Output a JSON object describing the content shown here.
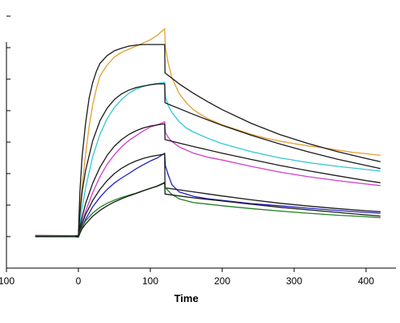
{
  "chart_data": {
    "type": "line",
    "title": "",
    "xlabel": "Time",
    "ylabel": "",
    "xlim": [
      -100,
      440
    ],
    "ylim": [
      -10,
      70
    ],
    "x_ticks": [
      -100,
      0,
      100,
      200,
      300,
      400
    ],
    "x_tick_labels": [
      "100",
      "0",
      "100",
      "200",
      "300",
      "400"
    ],
    "y_ticks": [
      -10,
      0,
      10,
      20,
      30,
      40,
      50,
      60,
      70
    ],
    "y_tick_labels": [],
    "grid": false,
    "legend": "none",
    "association_end": 120,
    "series": [
      {
        "color": "#e0a030",
        "x": [
          -60,
          -5,
          0,
          2,
          5,
          10,
          15,
          20,
          25,
          30,
          40,
          50,
          60,
          70,
          80,
          90,
          100,
          110,
          120,
          121,
          125,
          130,
          140,
          150,
          160,
          170,
          180,
          200,
          220,
          240,
          260,
          280,
          300,
          320,
          340,
          360,
          380,
          400,
          420
        ],
        "y": [
          0.2,
          0.1,
          0.2,
          8,
          16,
          26,
          35,
          42,
          47,
          51,
          54.5,
          57,
          58.5,
          59.5,
          60.5,
          61.5,
          62.5,
          64,
          66,
          60,
          55,
          50.5,
          45.5,
          42.5,
          40.3,
          38.8,
          37.5,
          35.5,
          34,
          32.5,
          31.3,
          30.3,
          29.5,
          28.8,
          28.2,
          27.5,
          26.8,
          26.3,
          25.8
        ]
      },
      {
        "color": "#1a1a1a",
        "x": [
          -60,
          -5,
          0,
          2,
          5,
          10,
          15,
          20,
          25,
          30,
          40,
          50,
          60,
          70,
          80,
          90,
          100,
          110,
          120,
          120.5,
          140,
          160,
          180,
          200,
          240,
          280,
          320,
          360,
          400,
          420
        ],
        "y": [
          0.2,
          0.2,
          0.2,
          14,
          25,
          36,
          44,
          49,
          52.5,
          55,
          57.5,
          59,
          59.8,
          60.5,
          60.8,
          61,
          61,
          61,
          61,
          52,
          48.5,
          45.5,
          42.8,
          40.3,
          36,
          32.4,
          29.5,
          27,
          24.8,
          23.8
        ]
      },
      {
        "color": "#30c8d0",
        "x": [
          -60,
          -5,
          0,
          2,
          5,
          10,
          20,
          30,
          40,
          50,
          60,
          70,
          80,
          90,
          100,
          110,
          120,
          121,
          125,
          130,
          140,
          150,
          160,
          180,
          200,
          240,
          280,
          320,
          360,
          400,
          420
        ],
        "y": [
          0.3,
          0.2,
          0.2,
          4,
          9,
          15.5,
          25.5,
          32.5,
          37.5,
          41,
          43.5,
          45.5,
          46.8,
          47.7,
          48.3,
          48.6,
          49,
          44.5,
          41.5,
          39.5,
          36.5,
          34.5,
          33.2,
          31.2,
          29.5,
          27,
          25,
          23.5,
          22.3,
          21.3,
          20.8
        ]
      },
      {
        "color": "#1a1a1a",
        "x": [
          -60,
          -5,
          0,
          2,
          5,
          10,
          20,
          30,
          40,
          50,
          60,
          70,
          80,
          90,
          100,
          110,
          120,
          120.5,
          160,
          200,
          240,
          280,
          320,
          360,
          400,
          420
        ],
        "y": [
          0.2,
          0.2,
          0.2,
          7,
          14,
          21,
          30.5,
          36.8,
          40.8,
          43.5,
          45.3,
          46.5,
          47.3,
          47.8,
          48.2,
          48.5,
          48.5,
          42.5,
          38.8,
          35.3,
          32.2,
          29.4,
          26.9,
          24.6,
          22.6,
          21.6
        ]
      },
      {
        "color": "#d040c8",
        "x": [
          -60,
          -5,
          0,
          2,
          5,
          10,
          20,
          30,
          40,
          50,
          60,
          70,
          80,
          90,
          100,
          110,
          120,
          121,
          125,
          130,
          140,
          160,
          180,
          200,
          240,
          280,
          320,
          360,
          400,
          420
        ],
        "y": [
          0.4,
          0.3,
          0.4,
          2,
          4.5,
          8,
          14,
          19,
          23,
          26,
          28.5,
          30.5,
          32,
          33.5,
          34.8,
          35.5,
          36.5,
          33,
          31.5,
          30.2,
          28.5,
          26.5,
          25.2,
          24.3,
          22.3,
          20.5,
          19,
          17.8,
          16.7,
          16.2
        ]
      },
      {
        "color": "#1a1a1a",
        "x": [
          -60,
          -5,
          0,
          2,
          5,
          10,
          20,
          30,
          40,
          50,
          60,
          70,
          80,
          90,
          100,
          110,
          120,
          120.5,
          160,
          200,
          240,
          280,
          320,
          360,
          400,
          420
        ],
        "y": [
          0.2,
          0.2,
          0.2,
          3,
          6,
          10.5,
          17,
          22,
          25.8,
          28.7,
          30.8,
          32.4,
          33.6,
          34.5,
          35.1,
          35.5,
          35.8,
          30.8,
          28.6,
          26.5,
          24.5,
          22.6,
          20.9,
          19.3,
          17.8,
          17.1
        ]
      },
      {
        "color": "#2020c0",
        "x": [
          -60,
          -5,
          0,
          2,
          5,
          10,
          20,
          30,
          40,
          50,
          60,
          70,
          80,
          90,
          100,
          110,
          120,
          121,
          125,
          130,
          140,
          160,
          180,
          200,
          240,
          280,
          320,
          360,
          400,
          420
        ],
        "y": [
          0,
          0,
          -0.2,
          1,
          3,
          5.5,
          9.5,
          12.5,
          15,
          17,
          18.6,
          20,
          21.5,
          22.8,
          24,
          25,
          26.5,
          22.5,
          19.5,
          16.5,
          14.2,
          12.8,
          12,
          11.5,
          10.5,
          9.8,
          9,
          8.3,
          7.7,
          7.4
        ]
      },
      {
        "color": "#1a1a1a",
        "x": [
          -60,
          -5,
          0,
          2,
          5,
          10,
          20,
          30,
          40,
          50,
          60,
          70,
          80,
          90,
          100,
          110,
          120,
          120.5,
          160,
          200,
          240,
          280,
          320,
          360,
          400,
          420
        ],
        "y": [
          0,
          0,
          0,
          2,
          4,
          7,
          11.5,
          15,
          17.8,
          20,
          21.7,
          23,
          24,
          24.8,
          25.4,
          25.8,
          26.2,
          15.5,
          14.2,
          12.9,
          11.7,
          10.6,
          9.7,
          8.9,
          8.2,
          7.9
        ]
      },
      {
        "color": "#208020",
        "x": [
          -60,
          -5,
          0,
          2,
          5,
          10,
          20,
          30,
          40,
          50,
          60,
          70,
          80,
          90,
          100,
          110,
          120,
          121,
          125,
          130,
          140,
          160,
          180,
          200,
          240,
          280,
          320,
          360,
          400,
          420
        ],
        "y": [
          0.3,
          0.2,
          -0.2,
          1.5,
          3,
          5,
          7.5,
          9.3,
          10.6,
          11.6,
          12.4,
          13.1,
          13.8,
          14.6,
          15.3,
          16,
          17,
          15.5,
          14.5,
          13.4,
          12,
          10.8,
          10.3,
          9.8,
          8.9,
          8.1,
          7.4,
          6.8,
          6.3,
          6
        ]
      },
      {
        "color": "#1a1a1a",
        "x": [
          -60,
          -5,
          0,
          2,
          5,
          10,
          20,
          30,
          40,
          50,
          60,
          70,
          80,
          90,
          100,
          110,
          120,
          120.5,
          160,
          200,
          240,
          280,
          320,
          360,
          400,
          420
        ],
        "y": [
          0,
          0,
          0,
          1,
          2.5,
          4,
          6.5,
          8.3,
          9.8,
          11,
          12,
          12.9,
          13.7,
          14.5,
          15.3,
          16.1,
          17.2,
          13.5,
          12.3,
          11.3,
          10.3,
          9.3,
          8.5,
          7.7,
          6.9,
          6.5
        ]
      }
    ]
  }
}
